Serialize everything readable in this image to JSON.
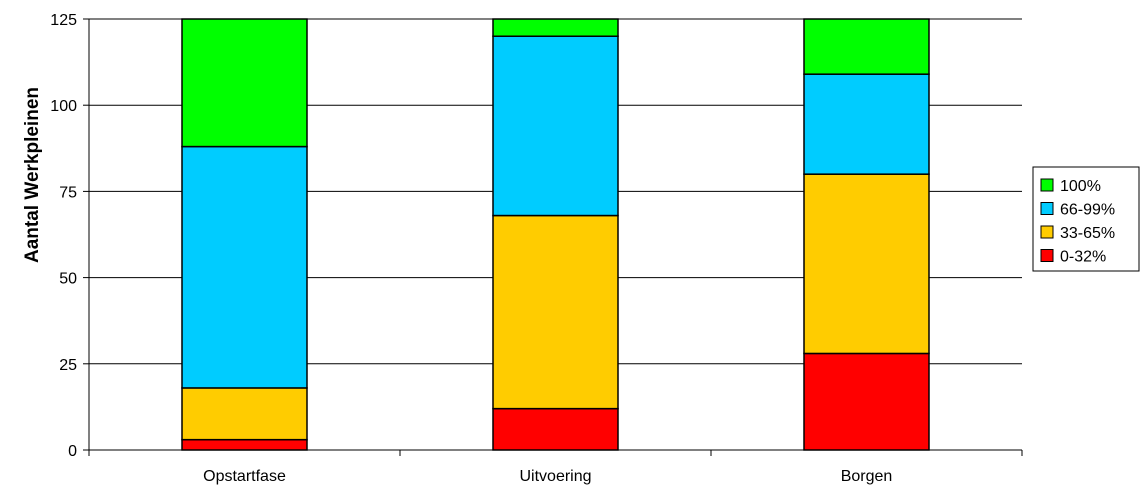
{
  "chart_data": {
    "type": "bar",
    "stacked": true,
    "categories": [
      "Opstartfase",
      "Uitvoering",
      "Borgen"
    ],
    "series": [
      {
        "name": "0-32%",
        "color": "#ff0000",
        "values": [
          3,
          12,
          28
        ]
      },
      {
        "name": "33-65%",
        "color": "#ffcc00",
        "values": [
          15,
          56,
          52
        ]
      },
      {
        "name": "66-99%",
        "color": "#00ccff",
        "values": [
          70,
          52,
          29
        ]
      },
      {
        "name": "100%",
        "color": "#00ff00",
        "values": [
          37,
          5,
          16
        ]
      }
    ],
    "title": "",
    "xlabel": "",
    "ylabel": "Aantal Werkpleinen",
    "ylim": [
      0,
      125
    ],
    "yticks": [
      "0",
      "25",
      "50",
      "75",
      "100",
      "125"
    ],
    "ytick_values": [
      0,
      25,
      50,
      75,
      100,
      125
    ],
    "grid": true,
    "legend_position": "right"
  }
}
